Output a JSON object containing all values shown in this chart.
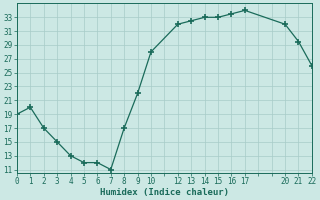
{
  "x": [
    0,
    1,
    2,
    3,
    4,
    5,
    6,
    7,
    8,
    9,
    10,
    12,
    13,
    14,
    15,
    16,
    17,
    20,
    21,
    22
  ],
  "y": [
    19,
    20,
    17,
    15,
    13,
    12,
    12,
    11,
    17,
    22,
    28,
    32,
    32.5,
    33,
    33,
    33.5,
    34,
    32,
    29.5,
    26
  ],
  "bg_color": "#cce8e4",
  "grid_color": "#a8ccc8",
  "line_color": "#1a6b5a",
  "marker_color": "#1a6b5a",
  "xlabel": "Humidex (Indice chaleur)",
  "xtick_labels": [
    "0",
    "1",
    "2",
    "3",
    "4",
    "5",
    "6",
    "7",
    "8",
    "9",
    "10",
    "121314151617",
    "",
    "",
    "",
    "",
    "",
    "202122",
    "",
    ""
  ],
  "xticks_all": [
    0,
    1,
    2,
    3,
    4,
    5,
    6,
    7,
    8,
    9,
    10,
    11,
    12,
    13,
    14,
    15,
    16,
    17,
    18,
    19,
    20,
    21,
    22
  ],
  "xtick_show": [
    0,
    1,
    2,
    3,
    4,
    5,
    6,
    7,
    8,
    9,
    10,
    12,
    13,
    14,
    15,
    16,
    17,
    20,
    21,
    22
  ],
  "yticks": [
    11,
    13,
    15,
    17,
    19,
    21,
    23,
    25,
    27,
    29,
    31,
    33
  ],
  "xlim": [
    0,
    22
  ],
  "ylim": [
    10.5,
    35
  ],
  "font_family": "monospace",
  "xlabel_fontsize": 6.5,
  "tick_fontsize": 5.5
}
